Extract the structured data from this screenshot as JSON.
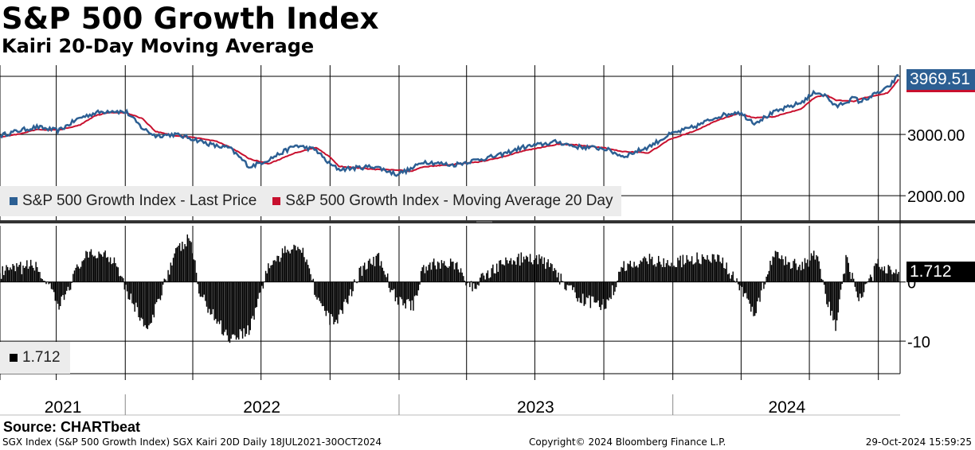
{
  "header": {
    "title": "S&P 500 Growth Index",
    "subtitle": "Kairi 20-Day Moving Average"
  },
  "colors": {
    "price": "#2c5f93",
    "moving_average": "#c8102e",
    "kairi": "#000000",
    "grid": "#000000",
    "legend_bg": "#ececec"
  },
  "chart_data": [
    {
      "type": "line",
      "title": "S&P 500 Growth Index",
      "x": [
        "2021-07-18",
        "2021-08-15",
        "2021-09-05",
        "2021-10-04",
        "2021-11-01",
        "2021-11-22",
        "2021-12-13",
        "2022-01-03",
        "2022-01-24",
        "2022-02-10",
        "2022-03-08",
        "2022-03-29",
        "2022-05-02",
        "2022-05-20",
        "2022-06-16",
        "2022-07-11",
        "2022-08-16",
        "2022-09-12",
        "2022-09-30",
        "2022-10-13",
        "2022-11-30",
        "2022-12-28",
        "2023-01-18",
        "2023-02-02",
        "2023-03-13",
        "2023-04-17",
        "2023-05-15",
        "2023-06-15",
        "2023-07-31",
        "2023-08-25",
        "2023-10-02",
        "2023-10-27",
        "2023-11-30",
        "2023-12-28",
        "2024-01-31",
        "2024-02-29",
        "2024-03-28",
        "2024-04-19",
        "2024-05-15",
        "2024-06-20",
        "2024-07-10",
        "2024-07-24",
        "2024-08-05",
        "2024-08-30",
        "2024-09-06",
        "2024-10-14",
        "2024-10-28"
      ],
      "series": [
        {
          "name": "S&P 500 Growth Index - Last Price",
          "values": [
            2980,
            3070,
            3120,
            3060,
            3270,
            3350,
            3390,
            3360,
            3100,
            2980,
            3000,
            2940,
            2810,
            2780,
            2470,
            2590,
            2820,
            2750,
            2520,
            2430,
            2480,
            2350,
            2440,
            2560,
            2500,
            2590,
            2660,
            2790,
            2880,
            2800,
            2770,
            2640,
            2800,
            3000,
            3130,
            3290,
            3370,
            3190,
            3360,
            3520,
            3700,
            3620,
            3450,
            3600,
            3530,
            3760,
            3969.51
          ]
        },
        {
          "name": "S&P 500 Growth Index - Moving Average 20 Day",
          "values": [
            2960,
            3010,
            3080,
            3070,
            3150,
            3310,
            3360,
            3350,
            3260,
            3050,
            2980,
            2960,
            2890,
            2800,
            2600,
            2520,
            2700,
            2790,
            2640,
            2480,
            2430,
            2420,
            2400,
            2470,
            2510,
            2550,
            2620,
            2730,
            2840,
            2830,
            2780,
            2720,
            2700,
            2920,
            3060,
            3230,
            3340,
            3270,
            3290,
            3420,
            3620,
            3640,
            3560,
            3540,
            3580,
            3680,
            3900
          ]
        }
      ],
      "yticks": [
        2000,
        3000
      ],
      "ytick_labels": [
        "2000.00",
        "3000.00"
      ],
      "ylim": [
        1600,
        4130
      ],
      "last_value_label": "3969.51",
      "legend_position": "bottom-left"
    },
    {
      "type": "bar",
      "title": "SGX Kairi 20D",
      "x": [
        "2021-07-18",
        "2021-08-20",
        "2021-09-01",
        "2021-09-20",
        "2021-10-04",
        "2021-11-05",
        "2021-12-01",
        "2021-12-20",
        "2022-01-05",
        "2022-02-01",
        "2022-02-23",
        "2022-03-10",
        "2022-03-29",
        "2022-04-10",
        "2022-05-06",
        "2022-05-20",
        "2022-06-16",
        "2022-07-10",
        "2022-08-16",
        "2022-09-01",
        "2022-09-12",
        "2022-09-30",
        "2022-10-13",
        "2022-11-11",
        "2022-12-05",
        "2022-12-28",
        "2023-01-20",
        "2023-02-02",
        "2023-03-13",
        "2023-04-06",
        "2023-05-15",
        "2023-06-15",
        "2023-07-14",
        "2023-08-18",
        "2023-09-01",
        "2023-10-04",
        "2023-10-27",
        "2023-11-30",
        "2023-12-28",
        "2024-01-31",
        "2024-03-07",
        "2024-04-19",
        "2024-05-15",
        "2024-06-20",
        "2024-07-10",
        "2024-07-24",
        "2024-08-05",
        "2024-08-19",
        "2024-09-06",
        "2024-10-01",
        "2024-10-28"
      ],
      "values": [
        1.5,
        2.5,
        3,
        -0.5,
        -4.5,
        4,
        5,
        3.5,
        -2,
        -8.5,
        0.5,
        5,
        7.5,
        -2,
        -7,
        -9.5,
        -8,
        2.5,
        6.5,
        4,
        -2,
        -6.5,
        -6,
        2,
        4,
        -3,
        -4,
        2.5,
        3.5,
        -1,
        3,
        4,
        3.5,
        -1.5,
        -3,
        -4,
        2.5,
        4,
        3,
        4,
        3.5,
        -5,
        4.5,
        2.5,
        4.5,
        -3,
        -7.5,
        4,
        -3,
        3,
        1.712
      ],
      "yticks": [
        0,
        -10
      ],
      "ytick_labels": [
        "0",
        "-10"
      ],
      "ylim": [
        -15.5,
        9.5
      ],
      "last_value_label": "1.712",
      "legend_position": "bottom-left"
    }
  ],
  "x_axis": {
    "year_labels": [
      "2021",
      "2022",
      "2023",
      "2024"
    ],
    "year_label_dates": [
      "2021-10-10",
      "2022-07-02",
      "2023-07-02",
      "2024-06-01"
    ],
    "year_separator_dates": [
      "2022-01-01",
      "2023-01-01",
      "2024-01-01"
    ],
    "gridline_dates": [
      "2021-07-18",
      "2021-10-01",
      "2022-01-01",
      "2022-04-01",
      "2022-07-01",
      "2022-10-01",
      "2023-01-01",
      "2023-04-01",
      "2023-07-01",
      "2023-10-01",
      "2024-01-01",
      "2024-04-01",
      "2024-07-01",
      "2024-10-01"
    ],
    "date_min": "2021-07-18",
    "date_max": "2024-10-30"
  },
  "legends": {
    "price_label": "S&P 500 Growth Index - Last Price",
    "ma_label": "S&P 500 Growth Index - Moving Average 20 Day",
    "kairi_label": "1.712"
  },
  "tags": {
    "price_last": "3969.51",
    "kairi_last": "1.712"
  },
  "footer": {
    "source": "Source: CHARTbeat",
    "left": "SGX Index (S&P 500 Growth Index) SGX Kairi 20D  Daily 18JUL2021-30OCT2024",
    "middle": "Copyright© 2024 Bloomberg Finance L.P.",
    "right": "29-Oct-2024 15:59:25"
  }
}
